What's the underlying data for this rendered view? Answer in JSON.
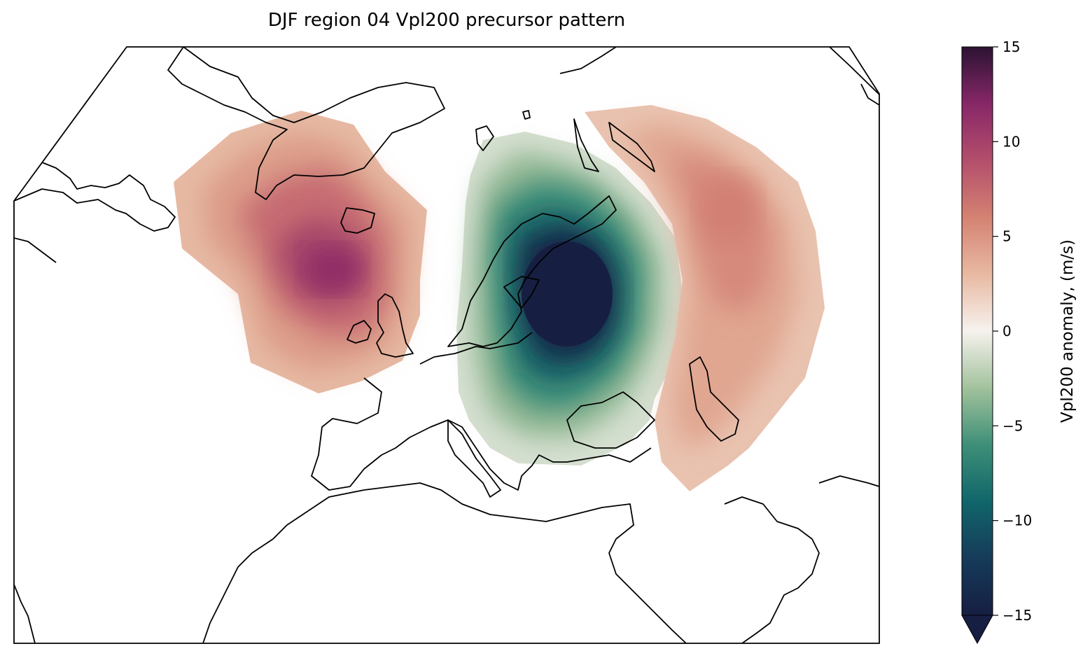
{
  "chart_data": {
    "type": "heatmap",
    "title": "DJF region 04 Vpl200 precursor pattern",
    "projection": "map of the North Atlantic, Europe, North Africa and western Asia",
    "colorbar": {
      "label": "Vpl200 anomaly, (m/s)",
      "range": [
        -15,
        15
      ],
      "ticks": [
        15,
        10,
        5,
        0,
        -5,
        -10,
        -15
      ],
      "tick_labels": [
        "15",
        "10",
        "5",
        "0",
        "−5",
        "−10",
        "−15"
      ],
      "extend": "min",
      "colormap_stops": [
        {
          "value": -15,
          "color": "#161e42"
        },
        {
          "value": -12,
          "color": "#163b5a"
        },
        {
          "value": -9,
          "color": "#10666a"
        },
        {
          "value": -6,
          "color": "#3e8f78"
        },
        {
          "value": -3,
          "color": "#a2c29c"
        },
        {
          "value": 0,
          "color": "#f6f2ee"
        },
        {
          "value": 3,
          "color": "#e8b9a2"
        },
        {
          "value": 6,
          "color": "#d48272"
        },
        {
          "value": 9,
          "color": "#b44e6c"
        },
        {
          "value": 12,
          "color": "#872767"
        },
        {
          "value": 15,
          "color": "#2b1333"
        }
      ]
    },
    "anomaly_centres": [
      {
        "region": "North Atlantic (south of Greenland, west of the British Isles)",
        "sign": "positive",
        "peak": 11
      },
      {
        "region": "Scandinavia / western Russia",
        "sign": "negative",
        "peak": -15
      },
      {
        "region": "Western Siberia / Caspian region",
        "sign": "positive",
        "peak": 6
      }
    ]
  }
}
